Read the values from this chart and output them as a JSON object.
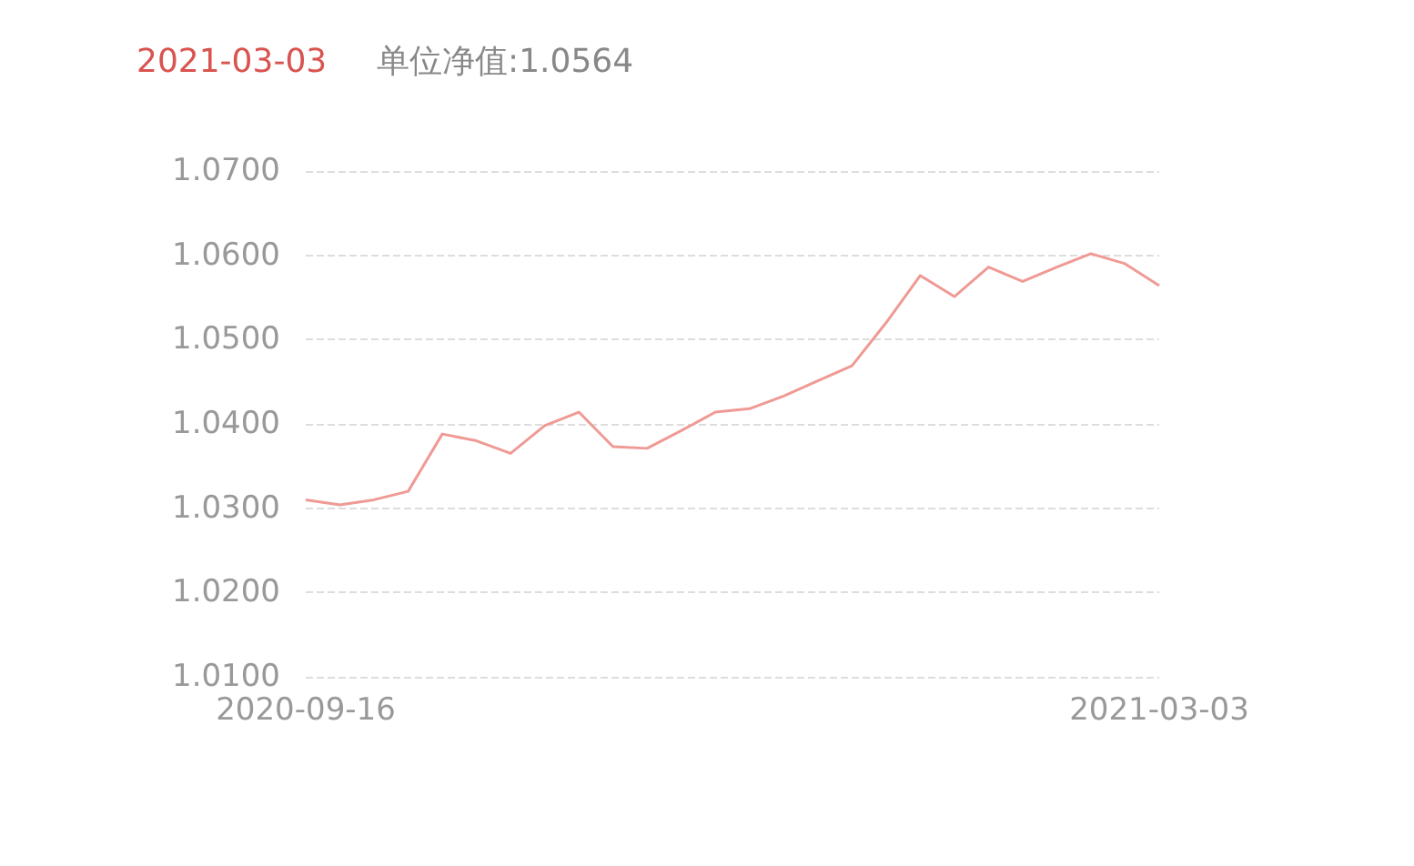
{
  "chart_data": {
    "type": "line",
    "title": "2021-03-03",
    "subtitle": "单位净值:1.0564",
    "categories": [
      "2020-09-16",
      null,
      null,
      null,
      null,
      null,
      null,
      null,
      null,
      null,
      null,
      null,
      null,
      null,
      null,
      null,
      null,
      null,
      null,
      null,
      null,
      null,
      null,
      null,
      null,
      "2021-03-03"
    ],
    "series": [
      {
        "color": "#ef9a94",
        "values": [
          1.031,
          1.0304,
          1.031,
          1.032,
          1.0388,
          1.038,
          1.0365,
          1.0398,
          1.0414,
          1.0373,
          1.0371,
          1.0392,
          1.0414,
          1.0418,
          1.0433,
          1.0451,
          1.0469,
          1.052,
          1.0576,
          1.0551,
          1.0586,
          1.0569,
          1.0586,
          1.0602,
          1.059,
          1.0564
        ]
      }
    ],
    "ylim": [
      1.01,
      1.07
    ],
    "yticks": [
      {
        "value": 1.01,
        "label": "1.0100"
      },
      {
        "value": 1.02,
        "label": "1.0200"
      },
      {
        "value": 1.03,
        "label": "1.0300"
      },
      {
        "value": 1.04,
        "label": "1.0400"
      },
      {
        "value": 1.05,
        "label": "1.0500"
      },
      {
        "value": 1.06,
        "label": "1.0600"
      },
      {
        "value": 1.07,
        "label": "1.0700"
      }
    ],
    "grid": "y",
    "marker": "none",
    "line_style": "solid"
  }
}
